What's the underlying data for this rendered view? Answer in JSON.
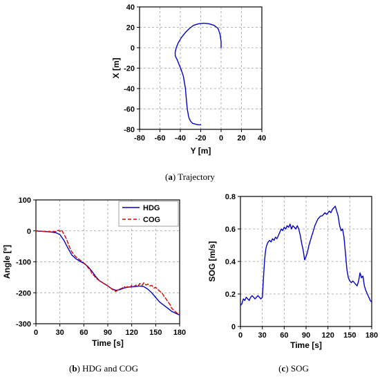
{
  "chart_data": [
    {
      "id": "a",
      "type": "line",
      "caption_label": "a",
      "caption_text": "Trajectory",
      "xlabel": "Y [m]",
      "ylabel": "X [m]",
      "xlim": [
        -80,
        40
      ],
      "ylim": [
        -80,
        40
      ],
      "xticks": [
        -80,
        -60,
        -40,
        -20,
        0,
        20,
        40
      ],
      "yticks": [
        -80,
        -60,
        -40,
        -20,
        0,
        20,
        40
      ],
      "grid": true,
      "series": [
        {
          "color": "#0000cc",
          "x": [
            0,
            0,
            -1,
            -3,
            -7,
            -12,
            -17,
            -22,
            -27,
            -31,
            -35,
            -39,
            -42,
            -44,
            -45,
            -45,
            -43,
            -41,
            -39,
            -37,
            -36,
            -35,
            -34.5,
            -34,
            -33.5,
            -33,
            -32.5,
            -32,
            -31,
            -30,
            -28,
            -25,
            -22,
            -20
          ],
          "y": [
            0,
            6,
            13,
            19,
            22,
            23.5,
            24,
            23.5,
            22,
            19,
            15,
            10,
            5,
            0,
            -4,
            -8,
            -12,
            -17,
            -22,
            -28,
            -34,
            -40,
            -46,
            -52,
            -57,
            -61,
            -64,
            -67,
            -70,
            -72,
            -74,
            -75,
            -75.5,
            -75.5
          ]
        }
      ]
    },
    {
      "id": "b",
      "type": "line",
      "caption_label": "b",
      "caption_text": "HDG and COG",
      "xlabel": "Time [s]",
      "ylabel": "Angle [º]",
      "xlim": [
        0,
        180
      ],
      "ylim": [
        -300,
        100
      ],
      "xticks": [
        0,
        30,
        60,
        90,
        120,
        150,
        180
      ],
      "yticks": [
        -300,
        -200,
        -100,
        0,
        100
      ],
      "grid": true,
      "legend_position": "top-right",
      "series": [
        {
          "name": "HDG",
          "color": "#0000cc",
          "dash": "solid",
          "x": [
            0,
            10,
            20,
            25,
            30,
            35,
            40,
            45,
            50,
            55,
            60,
            65,
            70,
            75,
            80,
            85,
            90,
            95,
            100,
            105,
            110,
            115,
            120,
            125,
            130,
            135,
            140,
            145,
            150,
            155,
            160,
            165,
            170,
            175,
            180
          ],
          "y": [
            0,
            -2,
            -4,
            -6,
            -12,
            -30,
            -55,
            -78,
            -90,
            -98,
            -105,
            -115,
            -130,
            -148,
            -162,
            -170,
            -178,
            -187,
            -192,
            -190,
            -185,
            -182,
            -181,
            -180,
            -178,
            -180,
            -188,
            -200,
            -215,
            -230,
            -240,
            -250,
            -260,
            -266,
            -272
          ]
        },
        {
          "name": "COG",
          "color": "#dd0000",
          "dash": "dashed",
          "x": [
            0,
            10,
            20,
            25,
            28,
            30,
            32,
            35,
            38,
            40,
            42,
            45,
            48,
            50,
            53,
            55,
            58,
            60,
            63,
            65,
            68,
            70,
            73,
            75,
            78,
            80,
            83,
            85,
            88,
            90,
            93,
            95,
            98,
            100,
            103,
            105,
            108,
            110,
            113,
            115,
            118,
            120,
            123,
            125,
            128,
            130,
            133,
            135,
            138,
            140,
            143,
            145,
            148,
            150,
            153,
            155,
            158,
            160,
            163,
            165,
            168,
            170,
            175,
            180
          ],
          "y": [
            0,
            -2,
            -3,
            -2,
            2,
            -2,
            3,
            -10,
            -25,
            -38,
            -52,
            -68,
            -78,
            -84,
            -90,
            -94,
            -99,
            -104,
            -110,
            -118,
            -126,
            -138,
            -145,
            -153,
            -158,
            -162,
            -166,
            -170,
            -174,
            -178,
            -183,
            -188,
            -192,
            -196,
            -190,
            -188,
            -185,
            -180,
            -183,
            -179,
            -182,
            -176,
            -180,
            -175,
            -178,
            -170,
            -176,
            -168,
            -175,
            -172,
            -178,
            -176,
            -185,
            -182,
            -190,
            -195,
            -200,
            -210,
            -220,
            -228,
            -238,
            -250,
            -262,
            -272
          ]
        }
      ]
    },
    {
      "id": "c",
      "type": "line",
      "caption_label": "c",
      "caption_text": "SOG",
      "xlabel": "Time [s]",
      "ylabel": "SOG [m/s]",
      "xlim": [
        0,
        180
      ],
      "ylim": [
        0,
        0.8
      ],
      "xticks": [
        0,
        30,
        60,
        90,
        120,
        150,
        180
      ],
      "yticks": [
        0,
        0.2,
        0.4,
        0.6,
        0.8
      ],
      "grid": true,
      "series": [
        {
          "color": "#0000cc",
          "x": [
            0,
            2,
            4,
            6,
            8,
            10,
            12,
            14,
            16,
            18,
            20,
            22,
            24,
            26,
            28,
            30,
            31,
            32,
            33,
            34,
            35,
            36,
            38,
            40,
            42,
            44,
            46,
            48,
            50,
            52,
            54,
            56,
            58,
            60,
            62,
            64,
            66,
            68,
            70,
            72,
            74,
            76,
            78,
            80,
            82,
            84,
            86,
            88,
            90,
            92,
            94,
            96,
            98,
            100,
            102,
            104,
            106,
            108,
            110,
            112,
            114,
            116,
            118,
            120,
            122,
            124,
            126,
            128,
            130,
            132,
            134,
            136,
            138,
            140,
            142,
            144,
            146,
            148,
            150,
            152,
            154,
            156,
            158,
            160,
            162,
            164,
            166,
            168,
            170,
            172,
            174,
            176,
            178,
            180
          ],
          "y": [
            0.13,
            0.14,
            0.17,
            0.16,
            0.18,
            0.17,
            0.16,
            0.18,
            0.19,
            0.18,
            0.17,
            0.18,
            0.19,
            0.18,
            0.17,
            0.18,
            0.25,
            0.33,
            0.4,
            0.45,
            0.48,
            0.5,
            0.52,
            0.53,
            0.52,
            0.54,
            0.53,
            0.55,
            0.54,
            0.56,
            0.58,
            0.6,
            0.59,
            0.61,
            0.6,
            0.62,
            0.61,
            0.63,
            0.6,
            0.62,
            0.61,
            0.6,
            0.62,
            0.6,
            0.56,
            0.51,
            0.47,
            0.41,
            0.43,
            0.46,
            0.5,
            0.53,
            0.56,
            0.59,
            0.62,
            0.64,
            0.66,
            0.67,
            0.68,
            0.68,
            0.69,
            0.7,
            0.69,
            0.7,
            0.71,
            0.7,
            0.72,
            0.73,
            0.74,
            0.71,
            0.68,
            0.62,
            0.59,
            0.6,
            0.55,
            0.45,
            0.35,
            0.3,
            0.28,
            0.27,
            0.28,
            0.27,
            0.26,
            0.25,
            0.28,
            0.33,
            0.3,
            0.31,
            0.25,
            0.22,
            0.2,
            0.18,
            0.16,
            0.15
          ]
        }
      ]
    }
  ]
}
